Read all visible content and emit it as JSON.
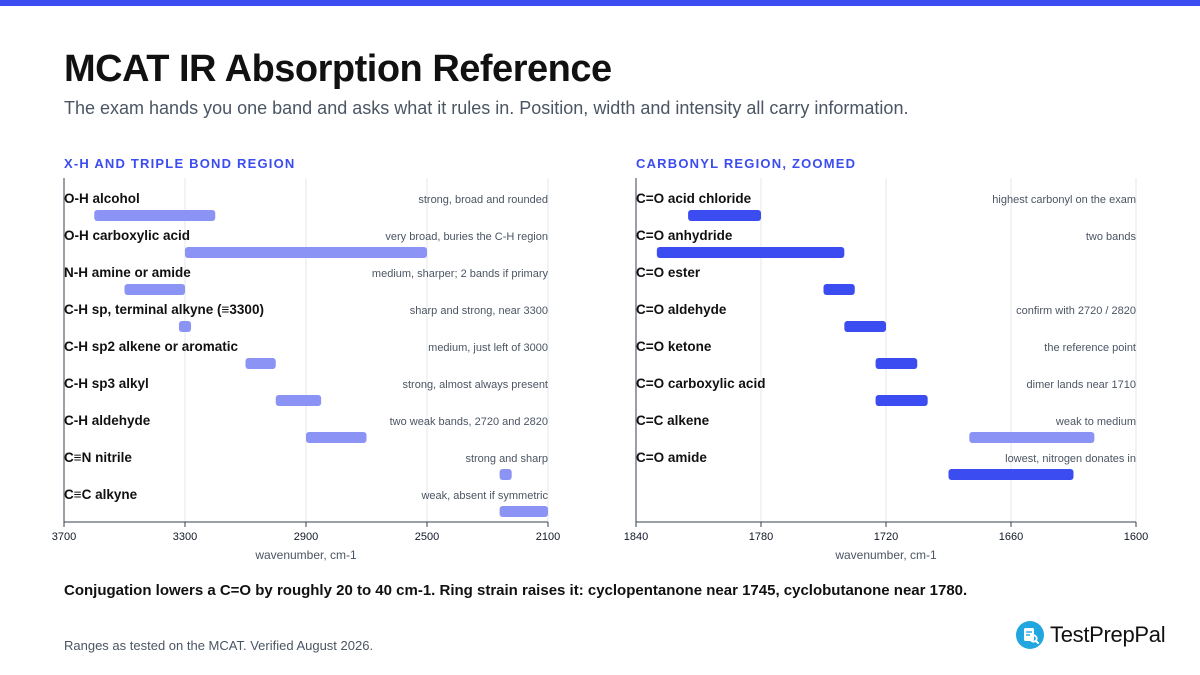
{
  "colors": {
    "accent": "#3b4cf0",
    "bar_light": "#8b93f5",
    "grid": "#e5e7eb",
    "axis": "#374151",
    "note_text": "#4b5563",
    "logo": "#22a6e0"
  },
  "header": {
    "title": "MCAT IR Absorption Reference",
    "subtitle": "The exam hands you one band and asks what it rules in. Position, width and intensity all carry information."
  },
  "chart_data": [
    {
      "type": "bar",
      "orientation": "horizontal-range",
      "title": "X-H AND TRIPLE BOND REGION",
      "xlabel": "wavenumber, cm-1",
      "xlim": [
        3700,
        2100
      ],
      "x_reversed": true,
      "xticks": [
        3700,
        3300,
        2900,
        2500,
        2100
      ],
      "grid": true,
      "items": [
        {
          "label": "O-H alcohol",
          "note": "strong, broad and rounded",
          "range": [
            3600,
            3200
          ],
          "color": "#8b93f5"
        },
        {
          "label": "O-H carboxylic acid",
          "note": "very broad, buries the C-H region",
          "range": [
            3300,
            2500
          ],
          "color": "#8b93f5"
        },
        {
          "label": "N-H amine or amide",
          "note": "medium, sharper; 2 bands if primary",
          "range": [
            3500,
            3300
          ],
          "color": "#8b93f5"
        },
        {
          "label": "C-H sp, terminal alkyne (≡3300)",
          "note": "sharp and strong, near 3300",
          "range": [
            3320,
            3280
          ],
          "color": "#8b93f5"
        },
        {
          "label": "C-H sp2 alkene or aromatic",
          "note": "medium, just left of 3000",
          "range": [
            3100,
            3000
          ],
          "color": "#8b93f5"
        },
        {
          "label": "C-H sp3 alkyl",
          "note": "strong, almost always present",
          "range": [
            3000,
            2850
          ],
          "color": "#8b93f5"
        },
        {
          "label": "C-H aldehyde",
          "note": "two weak bands, 2720 and 2820",
          "range": [
            2900,
            2700
          ],
          "color": "#8b93f5"
        },
        {
          "label": "C≡N nitrile",
          "note": "strong and sharp",
          "range": [
            2260,
            2220
          ],
          "color": "#8b93f5"
        },
        {
          "label": "C≡C alkyne",
          "note": "weak, absent if symmetric",
          "range": [
            2260,
            2100
          ],
          "color": "#8b93f5"
        }
      ]
    },
    {
      "type": "bar",
      "orientation": "horizontal-range",
      "title": "CARBONYL REGION, ZOOMED",
      "xlabel": "wavenumber, cm-1",
      "xlim": [
        1840,
        1600
      ],
      "x_reversed": true,
      "xticks": [
        1840,
        1780,
        1720,
        1660,
        1600
      ],
      "grid": true,
      "items": [
        {
          "label": "C=O acid chloride",
          "note": "highest carbonyl on the exam",
          "range": [
            1815,
            1780
          ],
          "color": "#3b4cf0"
        },
        {
          "label": "C=O anhydride",
          "note": "two bands",
          "range": [
            1830,
            1740
          ],
          "color": "#3b4cf0"
        },
        {
          "label": "C=O ester",
          "note": "",
          "range": [
            1750,
            1735
          ],
          "color": "#3b4cf0"
        },
        {
          "label": "C=O aldehyde",
          "note": "confirm with 2720 / 2820",
          "range": [
            1740,
            1720
          ],
          "color": "#3b4cf0"
        },
        {
          "label": "C=O ketone",
          "note": "the reference point",
          "range": [
            1725,
            1705
          ],
          "color": "#3b4cf0"
        },
        {
          "label": "C=O carboxylic acid",
          "note": "dimer lands near 1710",
          "range": [
            1725,
            1700
          ],
          "color": "#3b4cf0"
        },
        {
          "label": "C=C alkene",
          "note": "weak to medium",
          "range": [
            1680,
            1620
          ],
          "color": "#8b93f5"
        },
        {
          "label": "C=O amide",
          "note": "lowest, nitrogen donates in",
          "range": [
            1690,
            1630
          ],
          "color": "#3b4cf0"
        }
      ]
    }
  ],
  "footnote": "Conjugation lowers a C=O by roughly 20 to 40 cm-1. Ring strain raises it: cyclopentanone near 1745, cyclobutanone near 1780.",
  "source": "Ranges as tested on the MCAT. Verified August 2026.",
  "brand": {
    "name": "TestPrepPal",
    "icon": "book-magnifier-icon"
  }
}
